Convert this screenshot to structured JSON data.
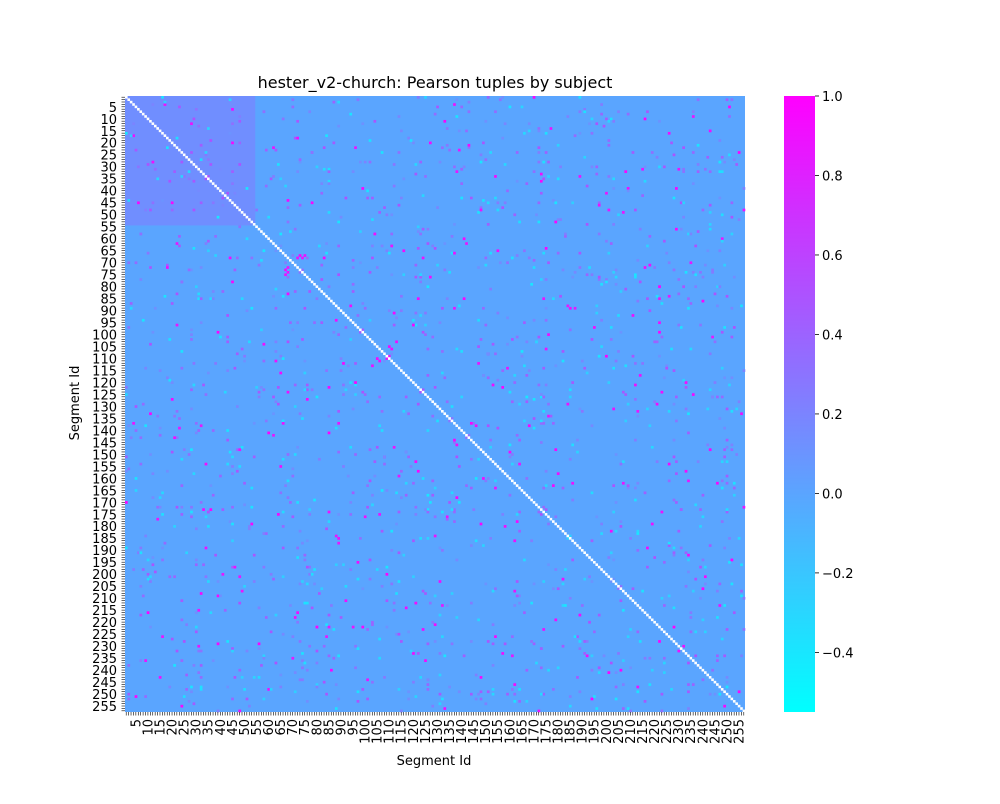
{
  "chart_data": {
    "type": "heatmap",
    "title": "hester_v2-church: Pearson tuples by subject",
    "xlabel": "Segment Id",
    "ylabel": "Segment Id",
    "n_segments": 257,
    "x_tick_labels": [
      "5",
      "10",
      "15",
      "20",
      "25",
      "30",
      "35",
      "40",
      "45",
      "50",
      "55",
      "60",
      "65",
      "70",
      "75",
      "80",
      "85",
      "90",
      "95",
      "100",
      "105",
      "110",
      "115",
      "120",
      "125",
      "130",
      "135",
      "140",
      "145",
      "150",
      "155",
      "160",
      "165",
      "170",
      "175",
      "180",
      "185",
      "190",
      "195",
      "200",
      "205",
      "210",
      "215",
      "220",
      "225",
      "230",
      "235",
      "240",
      "245",
      "250",
      "255"
    ],
    "y_tick_labels": [
      "5",
      "10",
      "15",
      "20",
      "25",
      "30",
      "35",
      "40",
      "45",
      "50",
      "55",
      "60",
      "65",
      "70",
      "75",
      "80",
      "85",
      "90",
      "95",
      "100",
      "105",
      "110",
      "115",
      "120",
      "125",
      "130",
      "135",
      "140",
      "145",
      "150",
      "155",
      "160",
      "165",
      "170",
      "175",
      "180",
      "185",
      "190",
      "195",
      "200",
      "205",
      "210",
      "215",
      "220",
      "225",
      "230",
      "235",
      "240",
      "245",
      "250",
      "255"
    ],
    "diagonal_value": 1.0,
    "background_value": 0.0,
    "value_range": [
      -0.55,
      1.0
    ],
    "elevated_block": {
      "segment_range": [
        1,
        54
      ],
      "approx_value": 0.25
    },
    "colorbar": {
      "colormap": "cool",
      "min": -0.55,
      "max": 1.0,
      "tick_labels": [
        "1.0",
        "0.8",
        "0.6",
        "0.4",
        "0.2",
        "0.0",
        "−0.2",
        "−0.4"
      ],
      "tick_values": [
        1.0,
        0.8,
        0.6,
        0.4,
        0.2,
        0.0,
        -0.2,
        -0.4
      ]
    }
  }
}
